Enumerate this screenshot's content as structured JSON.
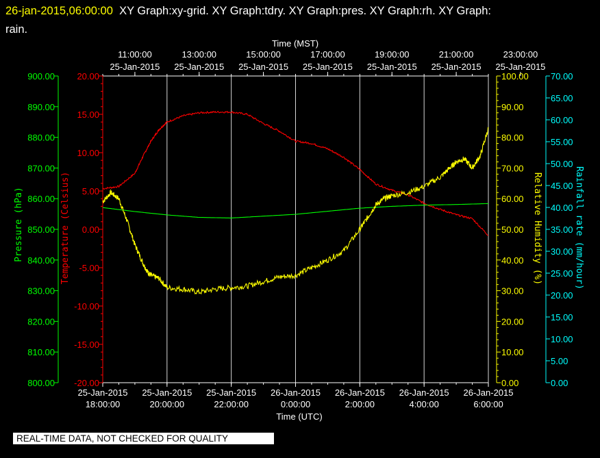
{
  "header": {
    "timestamp": "26-jan-2015,06:00:00",
    "graphs_line": "XY Graph:xy-grid.  XY Graph:tdry.  XY Graph:pres.  XY Graph:rh.  XY Graph:",
    "graphs_line2": "rain."
  },
  "quality_note": "REAL-TIME DATA, NOT CHECKED FOR QUALITY",
  "colors": {
    "pressure": "#00ff00",
    "temperature": "#ff0000",
    "humidity": "#ffff00",
    "rain": "#00ffff",
    "grid": "#ffffff"
  },
  "chart_data": {
    "type": "line",
    "x_axis_top": {
      "label": "Time (MST)",
      "ticks": [
        {
          "time": "11:00:00",
          "date": "25-Jan-2015"
        },
        {
          "time": "13:00:00",
          "date": "25-Jan-2015"
        },
        {
          "time": "15:00:00",
          "date": "25-Jan-2015"
        },
        {
          "time": "17:00:00",
          "date": "25-Jan-2015"
        },
        {
          "time": "19:00:00",
          "date": "25-Jan-2015"
        },
        {
          "time": "21:00:00",
          "date": "25-Jan-2015"
        },
        {
          "time": "23:00:00",
          "date": "25-Jan-2015"
        }
      ]
    },
    "x_axis_bottom": {
      "label": "Time (UTC)",
      "ticks": [
        {
          "date": "25-Jan-2015",
          "time": "18:00:00"
        },
        {
          "date": "25-Jan-2015",
          "time": "20:00:00"
        },
        {
          "date": "25-Jan-2015",
          "time": "22:00:00"
        },
        {
          "date": "26-Jan-2015",
          "time": "0:00:00"
        },
        {
          "date": "26-Jan-2015",
          "time": "2:00:00"
        },
        {
          "date": "26-Jan-2015",
          "time": "4:00:00"
        },
        {
          "date": "26-Jan-2015",
          "time": "6:00:00"
        }
      ]
    },
    "y_axes": {
      "pressure": {
        "label": "Pressure (hPa)",
        "ylim": [
          800,
          900
        ],
        "ticks": [
          "900.00",
          "890.00",
          "880.00",
          "870.00",
          "860.00",
          "850.00",
          "840.00",
          "830.00",
          "820.00",
          "810.00",
          "800.00"
        ]
      },
      "temperature": {
        "label": "Temperature (Celsius)",
        "ylim": [
          -20,
          20
        ],
        "ticks": [
          "20.00",
          "15.00",
          "10.00",
          "5.00",
          "0.00",
          "-5.00",
          "-10.00",
          "-15.00",
          "-20.00"
        ]
      },
      "humidity": {
        "label": "Relative Humidity (%)",
        "ylim": [
          0,
          100
        ],
        "ticks": [
          "100.00",
          "90.00",
          "80.00",
          "70.00",
          "60.00",
          "50.00",
          "40.00",
          "30.00",
          "20.00",
          "10.00",
          "0.00"
        ]
      },
      "rain": {
        "label": "Rainfall rate (mm/hour)",
        "ylim": [
          0,
          70
        ],
        "ticks": [
          "70.00",
          "65.00",
          "60.00",
          "55.00",
          "50.00",
          "45.00",
          "40.00",
          "35.00",
          "30.00",
          "25.00",
          "20.00",
          "15.00",
          "10.00",
          "5.00",
          "0.00"
        ]
      }
    },
    "x_hours_utc": [
      18,
      24,
      30
    ],
    "series": [
      {
        "key": "temperature",
        "x": [
          18.0,
          18.5,
          19.0,
          19.25,
          19.5,
          19.75,
          20.0,
          20.5,
          21.0,
          21.5,
          22.0,
          22.5,
          23.0,
          23.5,
          24.0,
          24.5,
          25.0,
          25.5,
          26.0,
          26.5,
          27.0,
          27.5,
          28.0,
          28.5,
          29.0,
          29.5,
          30.0
        ],
        "y": [
          5.3,
          5.6,
          7.3,
          9.5,
          11.5,
          13.0,
          14.0,
          14.8,
          15.2,
          15.3,
          15.3,
          15.0,
          13.8,
          12.8,
          11.5,
          11.2,
          10.5,
          9.4,
          7.8,
          5.9,
          5.1,
          4.5,
          3.4,
          2.6,
          1.9,
          1.4,
          -0.8
        ]
      },
      {
        "key": "pressure",
        "x": [
          18.0,
          19.0,
          20.0,
          21.0,
          22.0,
          23.0,
          24.0,
          25.0,
          26.0,
          27.0,
          28.0,
          29.0,
          30.0
        ],
        "y": [
          857.1,
          855.8,
          854.7,
          853.9,
          853.7,
          854.3,
          854.9,
          855.9,
          856.9,
          857.5,
          857.9,
          858.1,
          858.4
        ]
      },
      {
        "key": "humidity",
        "x": [
          18.0,
          18.25,
          18.5,
          18.75,
          19.0,
          19.25,
          19.4,
          19.5,
          19.75,
          20.0,
          20.5,
          21.0,
          21.5,
          22.0,
          22.5,
          23.0,
          23.5,
          24.0,
          24.5,
          25.0,
          25.5,
          26.0,
          26.25,
          26.5,
          26.75,
          27.0,
          27.5,
          28.0,
          28.5,
          28.8,
          29.0,
          29.25,
          29.5,
          29.75,
          30.0
        ],
        "y": [
          59.0,
          62.0,
          60.0,
          53.0,
          45.0,
          39.0,
          36.0,
          35.0,
          34.0,
          31.0,
          30.5,
          29.5,
          30.5,
          31.0,
          31.5,
          33.0,
          34.5,
          35.0,
          37.5,
          40.0,
          43.0,
          50.0,
          54.0,
          58.0,
          60.0,
          61.0,
          62.0,
          64.0,
          67.0,
          70.0,
          72.0,
          73.0,
          70.0,
          74.0,
          83.0
        ]
      },
      {
        "key": "rain",
        "x": [],
        "y": []
      }
    ]
  }
}
